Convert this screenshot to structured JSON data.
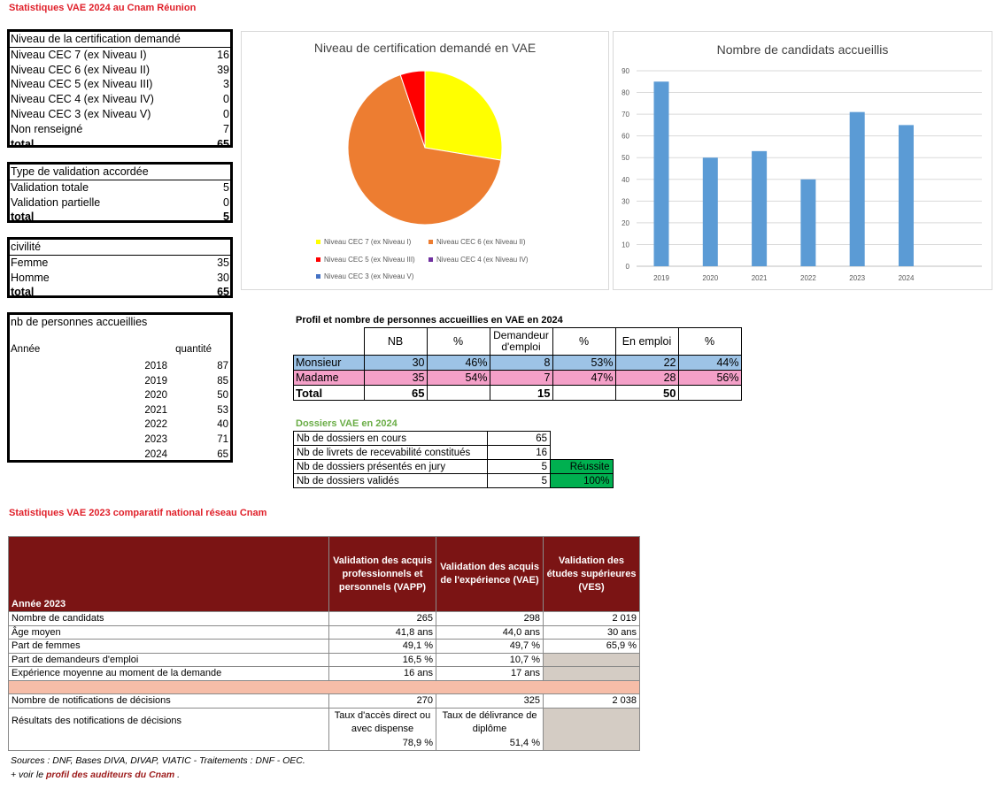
{
  "page_title": "Statistiques VAE 2024 au Cnam Réunion",
  "niveau": {
    "header": "Niveau de la certification demandé",
    "rows": [
      {
        "label": "Niveau CEC 7 (ex Niveau I)",
        "value": "16"
      },
      {
        "label": "Niveau CEC 6 (ex Niveau II)",
        "value": "39"
      },
      {
        "label": "Niveau CEC 5 (ex Niveau III)",
        "value": "3"
      },
      {
        "label": "Niveau CEC 4 (ex Niveau IV)",
        "value": "0"
      },
      {
        "label": "Niveau CEC 3 (ex Niveau V)",
        "value": "0"
      },
      {
        "label": "Non renseigné",
        "value": "7"
      }
    ],
    "total_label": "total",
    "total_value": "65"
  },
  "validation": {
    "header": "Type de validation accordée",
    "rows": [
      {
        "label": "Validation totale",
        "value": "5"
      },
      {
        "label": "Validation partielle",
        "value": "0"
      }
    ],
    "total_label": "total",
    "total_value": "5"
  },
  "civilite": {
    "header": "civilité",
    "rows": [
      {
        "label": "Femme",
        "value": "35"
      },
      {
        "label": "Homme",
        "value": "30"
      }
    ],
    "total_label": "total",
    "total_value": "65"
  },
  "accueillies": {
    "header": "nb de personnes accueillies",
    "col_annee": "Année",
    "col_quantite": "quantité",
    "rows": [
      {
        "year": "2018",
        "value": "87"
      },
      {
        "year": "2019",
        "value": "85"
      },
      {
        "year": "2020",
        "value": "50"
      },
      {
        "year": "2021",
        "value": "53"
      },
      {
        "year": "2022",
        "value": "40"
      },
      {
        "year": "2023",
        "value": "71"
      },
      {
        "year": "2024",
        "value": "65"
      }
    ]
  },
  "chart_data": [
    {
      "type": "pie",
      "title": "Niveau de certification demandé en VAE",
      "categories": [
        "Niveau CEC 7 (ex Niveau I)",
        "Niveau CEC 6 (ex Niveau II)",
        "Niveau CEC 5 (ex Niveau III)",
        "Niveau CEC 4 (ex Niveau IV)",
        "Niveau CEC 3 (ex Niveau V)"
      ],
      "values": [
        16,
        39,
        3,
        0,
        0
      ],
      "colors": [
        "#ffff00",
        "#ed7d31",
        "#ff0000",
        "#7030a0",
        "#4472c4"
      ],
      "legend_position": "bottom"
    },
    {
      "type": "bar",
      "title": "Nombre de candidats accueillis",
      "categories": [
        "2019",
        "2020",
        "2021",
        "2022",
        "2023",
        "2024"
      ],
      "values": [
        85,
        50,
        53,
        40,
        71,
        65
      ],
      "ylim": [
        0,
        90
      ],
      "yticks": [
        "0",
        "10",
        "20",
        "30",
        "40",
        "50",
        "60",
        "70",
        "80",
        "90"
      ],
      "color": "#5b9bd5",
      "grid": true
    }
  ],
  "profil": {
    "title": "Profil et nombre de personnes accueillies en VAE en 2024",
    "headers": [
      "NB",
      "%",
      "Demandeur d'emploi",
      "%",
      "En emploi",
      "%"
    ],
    "rows": [
      {
        "label": "Monsieur",
        "cells": [
          "30",
          "46%",
          "8",
          "53%",
          "22",
          "44%"
        ]
      },
      {
        "label": "Madame",
        "cells": [
          "35",
          "54%",
          "7",
          "47%",
          "28",
          "56%"
        ]
      }
    ],
    "total": {
      "label": "Total",
      "cells": [
        "65",
        "",
        "15",
        "",
        "50",
        ""
      ]
    }
  },
  "dossiers": {
    "title": "Dossiers VAE en 2024",
    "rows": [
      {
        "label": "Nb de dossiers en cours",
        "value": "65"
      },
      {
        "label": "Nb de livrets de recevabilité constitués",
        "value": "16"
      },
      {
        "label": "Nb de dossiers présentés en jury",
        "value": "5"
      },
      {
        "label": "Nb de dossiers validés",
        "value": "5"
      }
    ],
    "reussite_label": "Réussite",
    "reussite_value": "100%",
    "green": "#00b050"
  },
  "national": {
    "title": "Statistiques VAE 2023  comparatif national réseau Cnam",
    "year_label": "Année 2023",
    "headers": [
      "Validation des acquis professionnels et personnels (VAPP)",
      "Validation des acquis de l'expérience (VAE)",
      "Validation des études supérieures (VES)"
    ],
    "rows": [
      {
        "label": "Nombre de candidats",
        "cells": [
          "265",
          "298",
          "2 019"
        ]
      },
      {
        "label": "Âge moyen",
        "cells": [
          "41,8 ans",
          "44,0 ans",
          "30 ans"
        ]
      },
      {
        "label": "Part de femmes",
        "cells": [
          "49,1 %",
          "49,7 %",
          "65,9 %"
        ]
      },
      {
        "label": "Part de demandeurs d'emploi",
        "cells": [
          "16,5 %",
          "10,7 %",
          ""
        ]
      },
      {
        "label": "Expérience moyenne au moment de la demande",
        "cells": [
          "16 ans",
          "17 ans",
          ""
        ]
      }
    ],
    "notif_label": "Nombre de notifications de décisions",
    "notif_cells": [
      "270",
      "325",
      "2 038"
    ],
    "results_label": "Résultats des notifications de décisions",
    "results_vapp_text": "Taux d'accès direct ou avec dispense",
    "results_vapp_value": "78,9 %",
    "results_vae_text": "Taux de délivrance de diplôme",
    "results_vae_value": "51,4 %",
    "header_color": "#7b1414"
  },
  "sources": "Sources : DNF, Bases DIVA, DIVAP, VIATIC - Traitements : DNF - OEC.",
  "voir_prefix": "+ voir le ",
  "voir_link": "profil des auditeurs du Cnam",
  "voir_suffix": " ."
}
